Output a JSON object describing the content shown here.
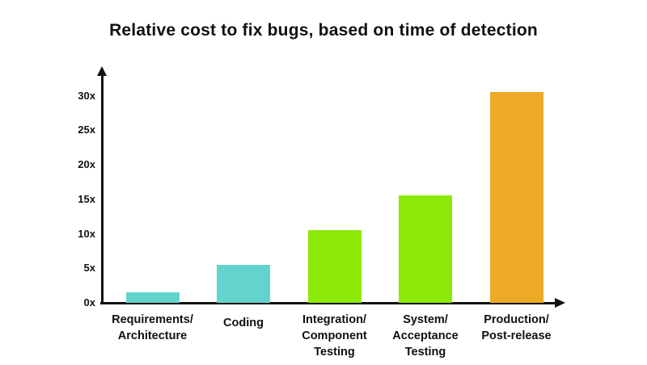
{
  "page": {
    "background": "#ffffff"
  },
  "chart_data": {
    "type": "bar",
    "title": "Relative cost to fix bugs, based on time of detection",
    "categories": [
      "Requirements/\nArchitecture",
      "Coding",
      "Integration/\nComponent\nTesting",
      "System/\nAcceptance\nTesting",
      "Production/\nPost-release"
    ],
    "values": [
      1.5,
      5.5,
      10.5,
      15.5,
      30.5
    ],
    "bar_colors": [
      "#62d4cd",
      "#62d4cd",
      "#8ce906",
      "#8ce906",
      "#edaa27"
    ],
    "y_ticks": [
      {
        "label": "0x",
        "value": 0
      },
      {
        "label": "5x",
        "value": 5
      },
      {
        "label": "10x",
        "value": 10
      },
      {
        "label": "15x",
        "value": 15
      },
      {
        "label": "20x",
        "value": 20
      },
      {
        "label": "25x",
        "value": 25
      },
      {
        "label": "30x",
        "value": 30
      }
    ],
    "ylim": [
      0,
      33
    ],
    "xlabel": "",
    "ylabel": "",
    "grid": false,
    "legend": false,
    "axis_color": "#111111",
    "text_color": "#111111"
  }
}
